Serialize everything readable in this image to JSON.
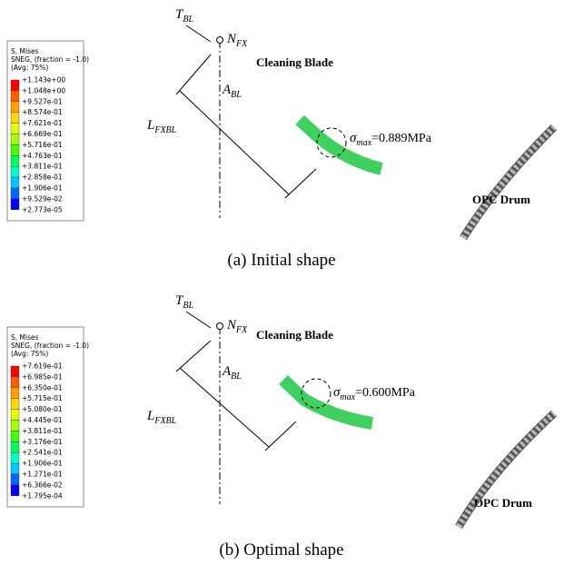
{
  "panels": [
    {
      "legend": {
        "title": [
          "S, Mises",
          "SNEG, (fraction = -1.0)",
          "(Avg: 75%)"
        ],
        "values": [
          "+1.143e+00",
          "+1.048e+00",
          "+9.527e-01",
          "+8.574e-01",
          "+7.621e-01",
          "+6.669e-01",
          "+5.716e-01",
          "+4.763e-01",
          "+3.811e-01",
          "+2.858e-01",
          "+1.906e-01",
          "+9.529e-02",
          "+2.773e-05"
        ]
      },
      "thickness": {
        "symbol": "T",
        "sub": "BL"
      },
      "pivot": {
        "symbol": "N",
        "sub": "FX"
      },
      "angle": {
        "symbol": "A",
        "sub": "BL"
      },
      "length": {
        "symbol": "L",
        "sub": "FXBL"
      },
      "blade_label": "Cleaning Blade",
      "stress": {
        "symbol": "σ",
        "sub": "max",
        "value": "=0.889MPa"
      },
      "drum_label": "OPC Drum",
      "caption": "(a) Initial shape"
    },
    {
      "legend": {
        "title": [
          "S, Mises",
          "SNEG, (fraction = -1.0)",
          "(Avg: 75%)"
        ],
        "values": [
          "+7.619e-01",
          "+6.985e-01",
          "+6.350e-01",
          "+5.715e-01",
          "+5.080e-01",
          "+4.445e-01",
          "+3.811e-01",
          "+3.176e-01",
          "+2.541e-01",
          "+1.906e-01",
          "+1.271e-01",
          "+6.366e-02",
          "+1.795e-04"
        ]
      },
      "thickness": {
        "symbol": "T",
        "sub": "BL"
      },
      "pivot": {
        "symbol": "N",
        "sub": "FX"
      },
      "angle": {
        "symbol": "A",
        "sub": "BL"
      },
      "length": {
        "symbol": "L",
        "sub": "FXBL"
      },
      "blade_label": "Cleaning Blade",
      "stress": {
        "symbol": "σ",
        "sub": "max",
        "value": "=0.600MPa"
      },
      "drum_label": "OPC Drum",
      "caption": "(b) Optimal shape"
    }
  ]
}
